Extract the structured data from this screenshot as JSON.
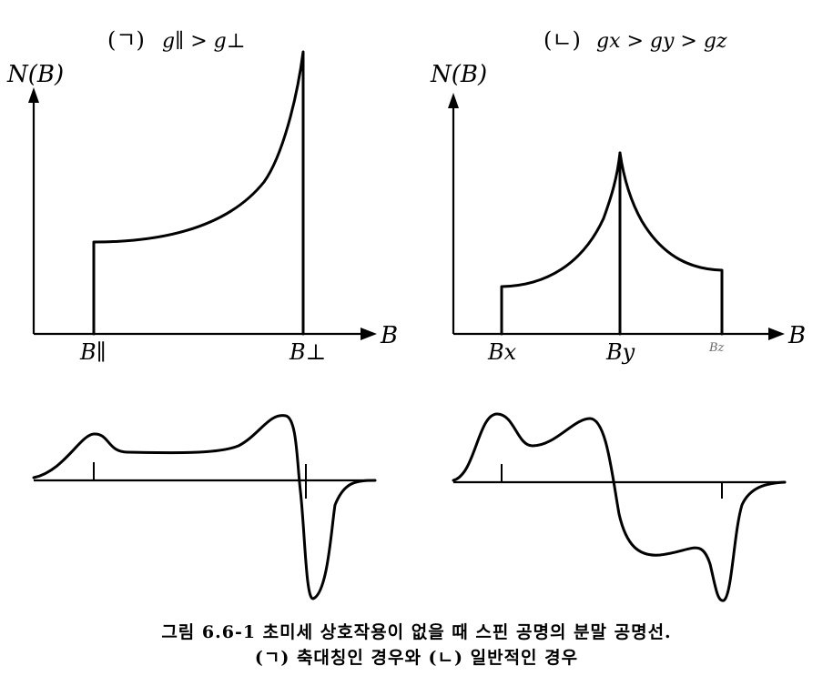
{
  "panel_left": {
    "title_prefix": "(ㄱ)",
    "title_expr": "g∥ > g⊥",
    "y_axis_label": "N(B)",
    "x_axis_label": "B",
    "tick_labels": [
      "B∥",
      "B⊥"
    ]
  },
  "panel_right": {
    "title_prefix": "(ㄴ)",
    "title_expr": "gx > gy > gz",
    "y_axis_label": "N(B)",
    "x_axis_label": "B",
    "tick_labels": [
      "Bx",
      "By",
      "Bz"
    ]
  },
  "caption": {
    "line1": "그림 6.6-1  초미세 상호작용이 없을 때 스핀 공명의 분말 공명선.",
    "line2": "(ㄱ) 축대칭인 경우와 (ㄴ) 일반적인 경우"
  }
}
